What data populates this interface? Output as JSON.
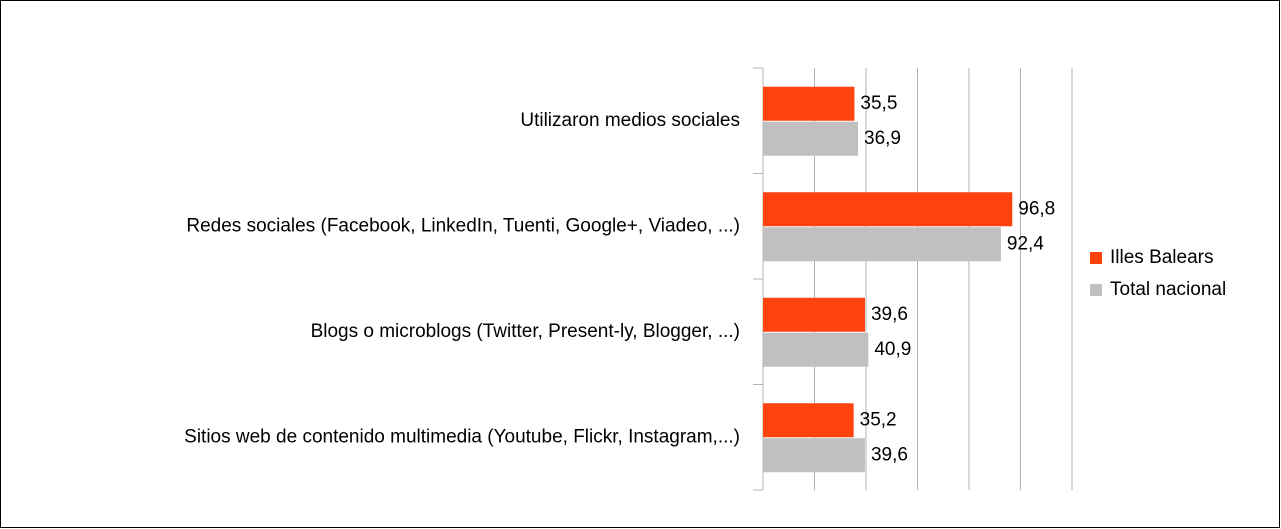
{
  "chart_data": {
    "type": "hbar",
    "categories": [
      "Utilizaron medios sociales",
      "Redes sociales (Facebook, LinkedIn, Tuenti, Google+, Viadeo, ...)",
      "Blogs o microblogs (Twitter, Present-ly, Blogger, ...)",
      "Sitios web de contenido multimedia (Youtube, Flickr, Instagram,...)"
    ],
    "series": [
      {
        "name": "Illes Balears",
        "color": "#ff420e",
        "values": [
          35.5,
          96.8,
          39.6,
          35.2
        ],
        "value_labels": [
          "35,5",
          "96,8",
          "39,6",
          "35,2"
        ]
      },
      {
        "name": "Total nacional",
        "color": "#c0c0c0",
        "values": [
          36.9,
          92.4,
          40.9,
          39.6
        ],
        "value_labels": [
          "36,9",
          "92,4",
          "40,9",
          "39,6"
        ]
      }
    ],
    "xlim": [
      0,
      120
    ],
    "xticks": [
      0,
      20,
      40,
      60,
      80,
      100,
      120
    ],
    "grid": true,
    "legend": "right"
  }
}
